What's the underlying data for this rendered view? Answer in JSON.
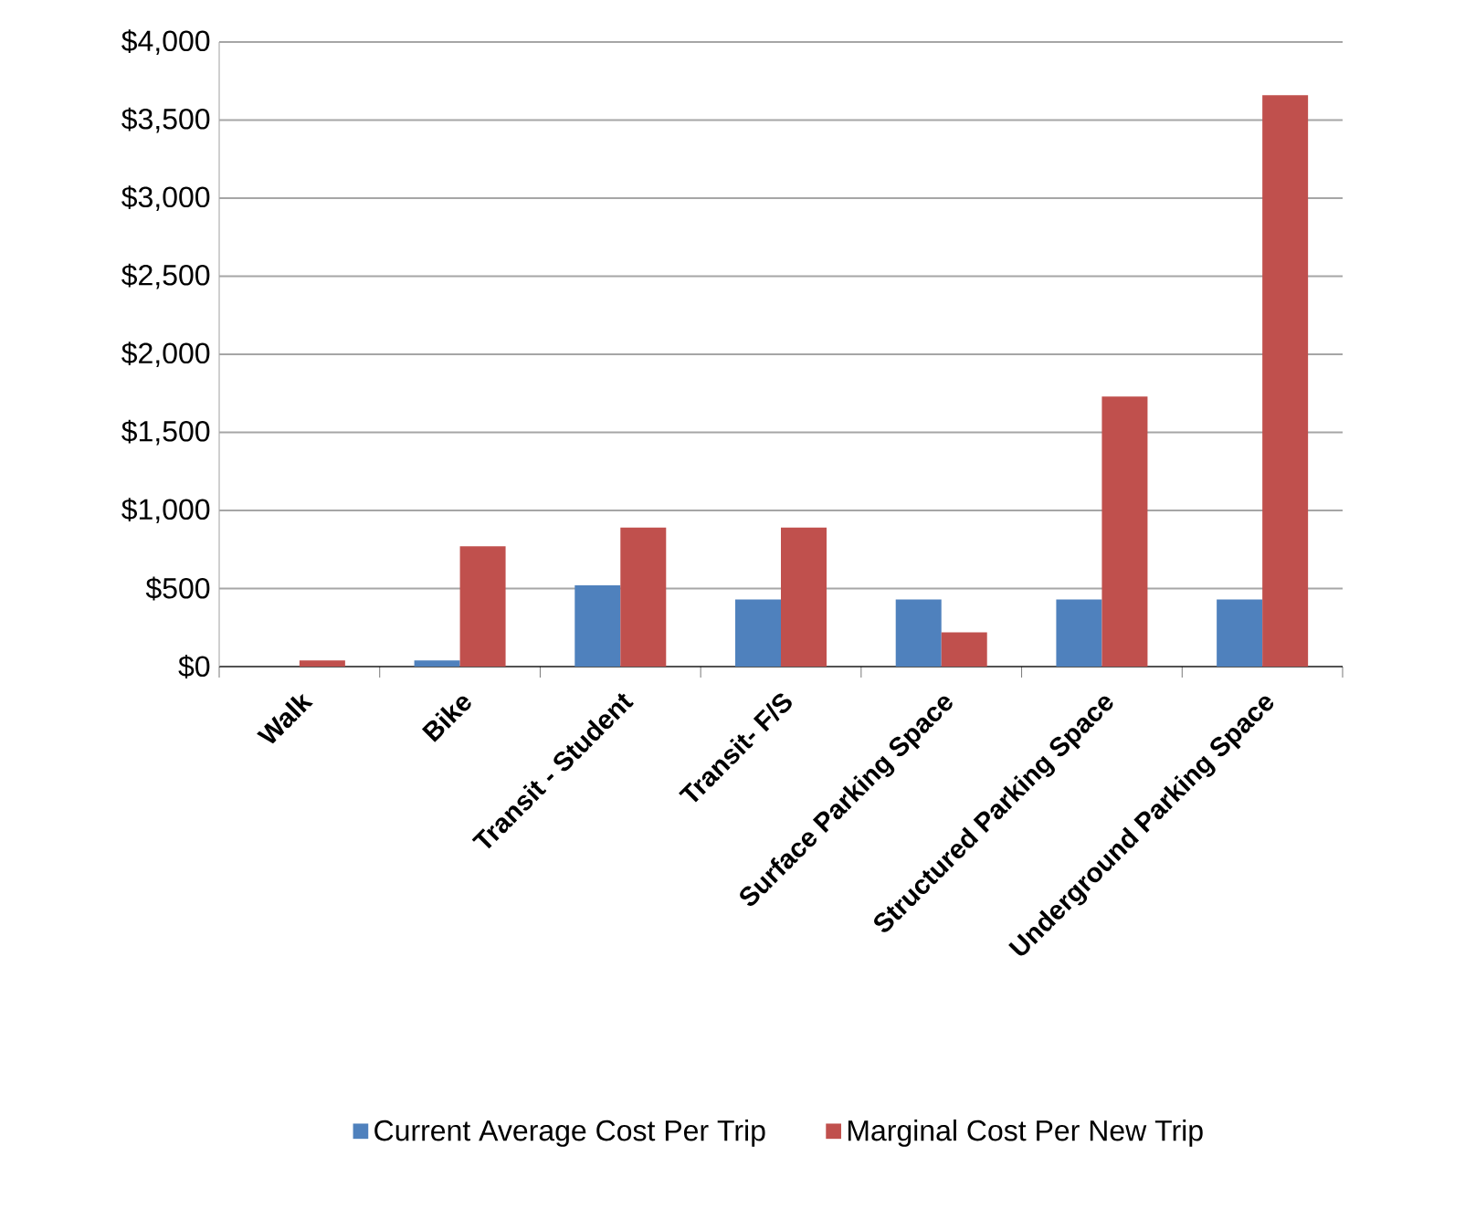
{
  "chart_data": {
    "type": "bar",
    "categories": [
      "Walk",
      "Bike",
      "Transit - Student",
      "Transit- F/S",
      "Surface Parking Space",
      "Structured Parking Space",
      "Underground Parking Space"
    ],
    "series": [
      {
        "name": "Current Average Cost Per Trip",
        "color": "#4f81bd",
        "values": [
          0,
          40,
          520,
          430,
          430,
          430,
          430
        ]
      },
      {
        "name": "Marginal Cost Per New Trip",
        "color": "#c0504d",
        "values": [
          40,
          770,
          890,
          890,
          220,
          1730,
          3660
        ]
      }
    ],
    "ylim": [
      0,
      4000
    ],
    "yticks": [
      {
        "value": 0,
        "label": "$0"
      },
      {
        "value": 500,
        "label": "$500"
      },
      {
        "value": 1000,
        "label": "$1,000"
      },
      {
        "value": 1500,
        "label": "$1,500"
      },
      {
        "value": 2000,
        "label": "$2,000"
      },
      {
        "value": 2500,
        "label": "$2,500"
      },
      {
        "value": 3000,
        "label": "$3,000"
      },
      {
        "value": 3500,
        "label": "$3,500"
      },
      {
        "value": 4000,
        "label": "$4,000"
      }
    ],
    "grid": "y",
    "legend": "bottom"
  }
}
